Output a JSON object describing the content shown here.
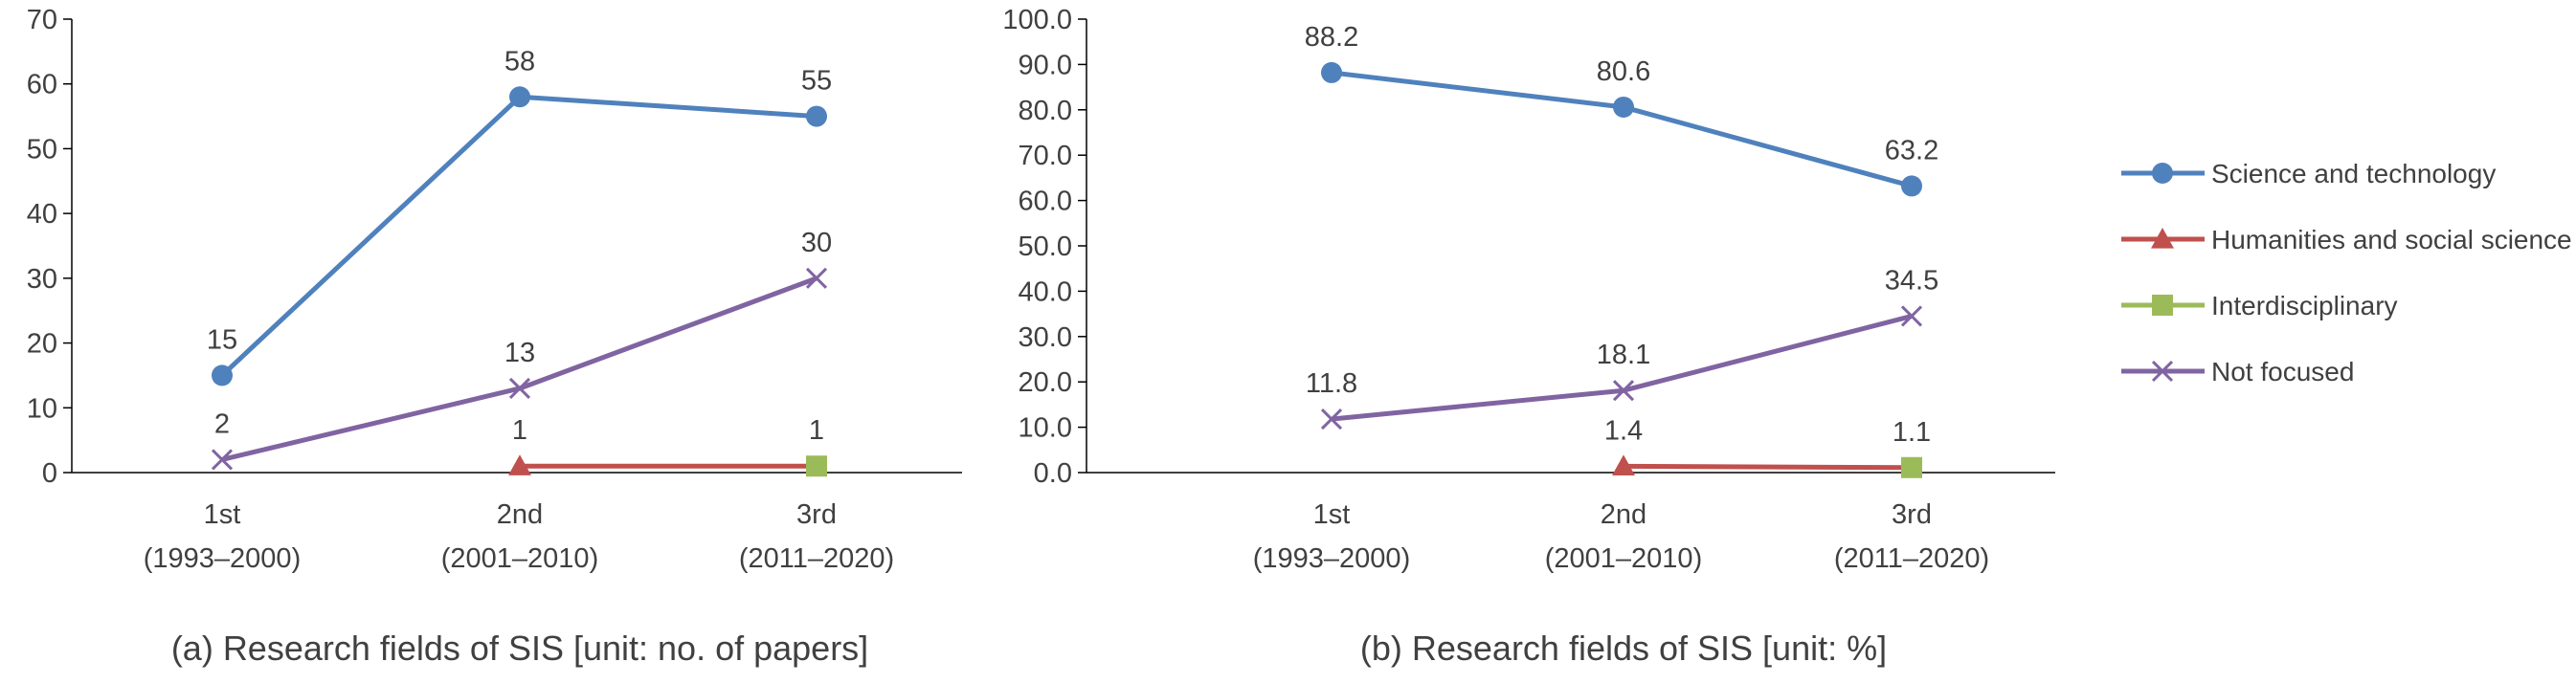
{
  "colors": {
    "science": "#4F81BD",
    "humanities": "#C0504D",
    "interdisciplinary": "#9BBB59",
    "not_focused": "#8064A2",
    "axis": "#000000",
    "text": "#404040"
  },
  "legend": [
    {
      "key": "science",
      "label": "Science and technology",
      "marker": "circle"
    },
    {
      "key": "humanities",
      "label": "Humanities and social science",
      "marker": "triangle"
    },
    {
      "key": "interdisciplinary",
      "label": "Interdisciplinary",
      "marker": "square"
    },
    {
      "key": "not_focused",
      "label": "Not focused",
      "marker": "x"
    }
  ],
  "chart_data": [
    {
      "type": "line",
      "title": "(a) Research fields of SIS [unit: no. of papers]",
      "categories": [
        [
          "1st",
          "(1993–2000)"
        ],
        [
          "2nd",
          "(2001–2010)"
        ],
        [
          "3rd",
          "(2011–2020)"
        ]
      ],
      "ylim": [
        0,
        70
      ],
      "ystep": 10,
      "ytick_decimals": 0,
      "series": [
        {
          "key": "science",
          "name": "Science and technology",
          "values": [
            15,
            58,
            55
          ],
          "labels": [
            "15",
            "58",
            "55"
          ]
        },
        {
          "key": "humanities",
          "name": "Humanities and social science",
          "values": [
            null,
            1,
            1
          ],
          "labels": [
            null,
            "1",
            null
          ]
        },
        {
          "key": "interdisciplinary",
          "name": "Interdisciplinary",
          "values": [
            null,
            null,
            1
          ],
          "labels": [
            null,
            null,
            "1"
          ]
        },
        {
          "key": "not_focused",
          "name": "Not focused",
          "values": [
            2,
            13,
            30
          ],
          "labels": [
            "2",
            "13",
            "30"
          ]
        }
      ]
    },
    {
      "type": "line",
      "title": "(b) Research fields of SIS [unit: %]",
      "categories": [
        [
          "1st",
          "(1993–2000)"
        ],
        [
          "2nd",
          "(2001–2010)"
        ],
        [
          "3rd",
          "(2011–2020)"
        ]
      ],
      "ylim": [
        0,
        100
      ],
      "ystep": 10,
      "ytick_decimals": 1,
      "series": [
        {
          "key": "science",
          "name": "Science and technology",
          "values": [
            88.2,
            80.6,
            63.2
          ],
          "labels": [
            "88.2",
            "80.6",
            "63.2"
          ]
        },
        {
          "key": "humanities",
          "name": "Humanities and social science",
          "values": [
            null,
            1.4,
            1.1
          ],
          "labels": [
            null,
            "1.4",
            null
          ]
        },
        {
          "key": "interdisciplinary",
          "name": "Interdisciplinary",
          "values": [
            null,
            null,
            1.1
          ],
          "labels": [
            null,
            null,
            "1.1"
          ]
        },
        {
          "key": "not_focused",
          "name": "Not focused",
          "values": [
            11.8,
            18.1,
            34.5
          ],
          "labels": [
            "11.8",
            "18.1",
            "34.5"
          ]
        }
      ]
    }
  ]
}
